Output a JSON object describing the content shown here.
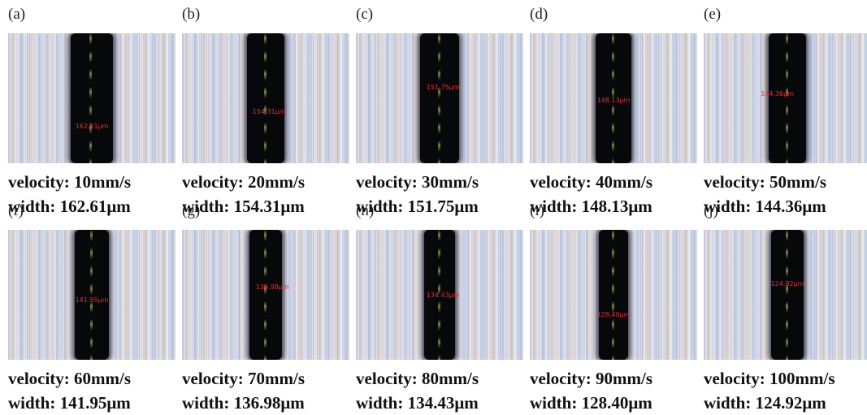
{
  "panels": [
    {
      "tag": "(a)",
      "velocity": "velocity: 10mm/s",
      "width": "width: 162.61μm",
      "mark": "162.61μm"
    },
    {
      "tag": "(b)",
      "velocity": "velocity: 20mm/s",
      "width": "width: 154.31μm",
      "mark": "154.31μm"
    },
    {
      "tag": "(c)",
      "velocity": "velocity: 30mm/s",
      "width": "width: 151.75μm",
      "mark": "151.75μm"
    },
    {
      "tag": "(d)",
      "velocity": "velocity: 40mm/s",
      "width": "width: 148.13μm",
      "mark": "148.13μm"
    },
    {
      "tag": "(e)",
      "velocity": "velocity: 50mm/s",
      "width": "width: 144.36μm",
      "mark": "144.36μm"
    },
    {
      "tag": "(f)",
      "velocity": "velocity: 60mm/s",
      "width": "width: 141.95μm",
      "mark": "141.95μm"
    },
    {
      "tag": "(g)",
      "velocity": "velocity: 70mm/s",
      "width": "width: 136.98μm",
      "mark": "136.98μm"
    },
    {
      "tag": "(h)",
      "velocity": "velocity: 80mm/s",
      "width": "width: 134.43μm",
      "mark": "134.43μm"
    },
    {
      "tag": "(i)",
      "velocity": "velocity: 90mm/s",
      "width": "width: 128.40μm",
      "mark": "128.40μm"
    },
    {
      "tag": "(j)",
      "velocity": "velocity: 100mm/s",
      "width": "width: 124.92μm",
      "mark": "124.92μm"
    }
  ]
}
